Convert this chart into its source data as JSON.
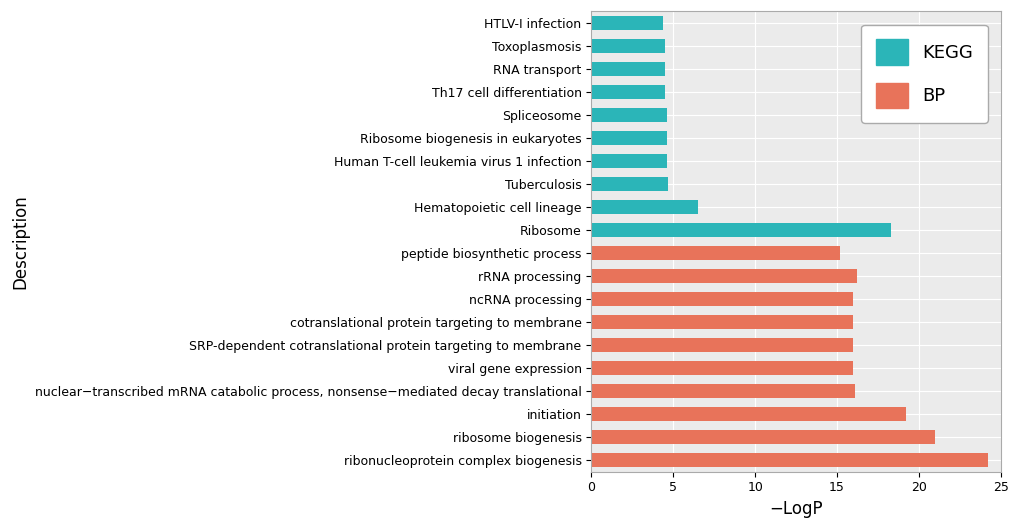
{
  "categories": [
    "ribonucleoprotein complex biogenesis",
    "ribosome biogenesis",
    "initiation",
    "nuclear−transcribed mRNA catabolic process, nonsense−mediated decay translational",
    "viral gene expression",
    "SRP-dependent cotranslational protein targeting to membrane",
    "cotranslational protein targeting to membrane",
    "ncRNA processing",
    "rRNA processing",
    "peptide biosynthetic process",
    "Ribosome",
    "Hematopoietic cell lineage",
    "Tuberculosis",
    "Human T-cell leukemia virus 1 infection",
    "Ribosome biogenesis in eukaryotes",
    "Spliceosome",
    "Th17 cell differentiation",
    "RNA transport",
    "Toxoplasmosis",
    "HTLV-I infection"
  ],
  "values": [
    24.2,
    21.0,
    19.2,
    16.1,
    16.0,
    16.0,
    16.0,
    16.0,
    16.2,
    15.2,
    18.3,
    6.5,
    4.7,
    4.6,
    4.6,
    4.6,
    4.5,
    4.5,
    4.5,
    4.4
  ],
  "colors": [
    "#E8735A",
    "#E8735A",
    "#E8735A",
    "#E8735A",
    "#E8735A",
    "#E8735A",
    "#E8735A",
    "#E8735A",
    "#E8735A",
    "#E8735A",
    "#2BB5B8",
    "#2BB5B8",
    "#2BB5B8",
    "#2BB5B8",
    "#2BB5B8",
    "#2BB5B8",
    "#2BB5B8",
    "#2BB5B8",
    "#2BB5B8",
    "#2BB5B8"
  ],
  "xlabel": "−LogP",
  "ylabel": "Description",
  "xlim": [
    0,
    25
  ],
  "xticks": [
    0,
    5,
    10,
    15,
    20,
    25
  ],
  "kegg_color": "#2BB5B8",
  "bp_color": "#E8735A",
  "background_color": "#FFFFFF",
  "plot_bg_color": "#EBEBEB",
  "grid_color": "#FFFFFF",
  "legend_kegg": "KEGG",
  "legend_bp": "BP",
  "label_fontsize": 12,
  "tick_fontsize": 9,
  "legend_fontsize": 13
}
